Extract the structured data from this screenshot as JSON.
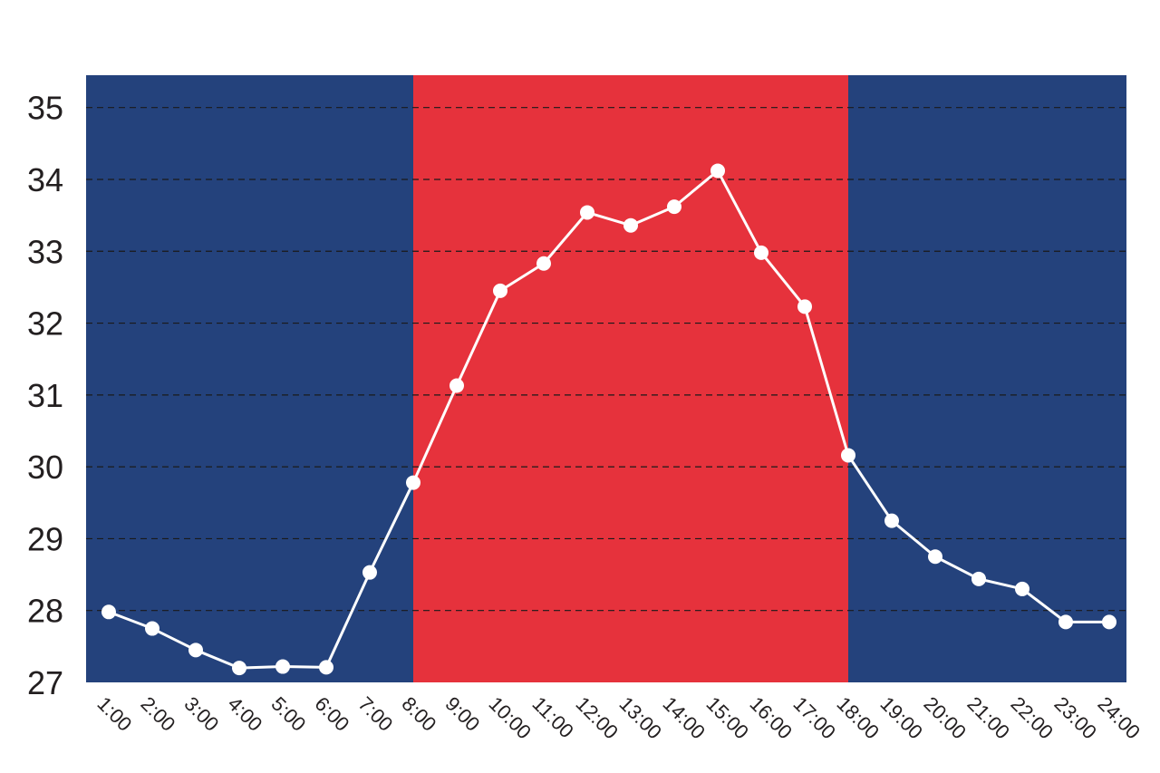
{
  "chart_data": {
    "type": "line",
    "title": "",
    "xlabel": "",
    "ylabel": "",
    "categories": [
      "1:00",
      "2:00",
      "3:00",
      "4:00",
      "5:00",
      "6:00",
      "7:00",
      "8:00",
      "9:00",
      "10:00",
      "11:00",
      "12:00",
      "13:00",
      "14:00",
      "15:00",
      "16:00",
      "17:00",
      "18:00",
      "19:00",
      "20:00",
      "21:00",
      "22:00",
      "23:00",
      "24:00"
    ],
    "series": [
      {
        "values": [
          27.98,
          27.75,
          27.45,
          27.2,
          27.22,
          27.21,
          28.53,
          29.78,
          31.13,
          32.45,
          32.83,
          33.54,
          33.36,
          33.62,
          34.12,
          32.98,
          32.23,
          30.16,
          29.25,
          28.75,
          28.44,
          28.3,
          27.84,
          27.84
        ]
      }
    ],
    "ylim": [
      27,
      35.45
    ],
    "yticks": [
      "27",
      "28",
      "29",
      "30",
      "31",
      "32",
      "33",
      "34",
      "35"
    ],
    "grid": true,
    "background_bands": [
      {
        "from": "1:00",
        "to": "8:00",
        "color": "#24427c"
      },
      {
        "from": "8:00",
        "to": "18:00",
        "color": "#e6323c"
      },
      {
        "from": "18:00",
        "to": "24:00",
        "color": "#24427c"
      }
    ],
    "colors": {
      "night": "#24427c",
      "day": "#e6323c",
      "line": "#ffffff",
      "grid": "#1a1a1a",
      "text": "#231f20"
    }
  }
}
